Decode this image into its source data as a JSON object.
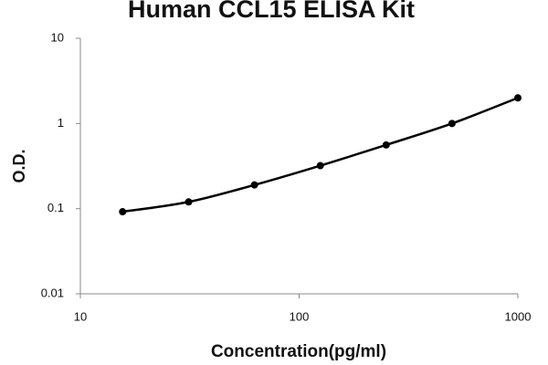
{
  "chart_data": {
    "type": "line",
    "title": "Human CCL15 ELISA Kit",
    "x_label": "Concentration(pg/ml)",
    "y_label": "O.D.",
    "x": [
      15.6,
      31.25,
      62.5,
      125,
      250,
      500,
      1000
    ],
    "values": [
      0.092,
      0.12,
      0.19,
      0.32,
      0.56,
      1.0,
      2.0
    ],
    "color": "#000000",
    "markers": true,
    "xscale": "log",
    "yscale": "log",
    "xlim": [
      10,
      1000
    ],
    "ylim": [
      0.01,
      10
    ],
    "xticks": [
      10,
      100,
      1000
    ],
    "yticks": [
      0.01,
      0.1,
      1,
      10
    ]
  }
}
